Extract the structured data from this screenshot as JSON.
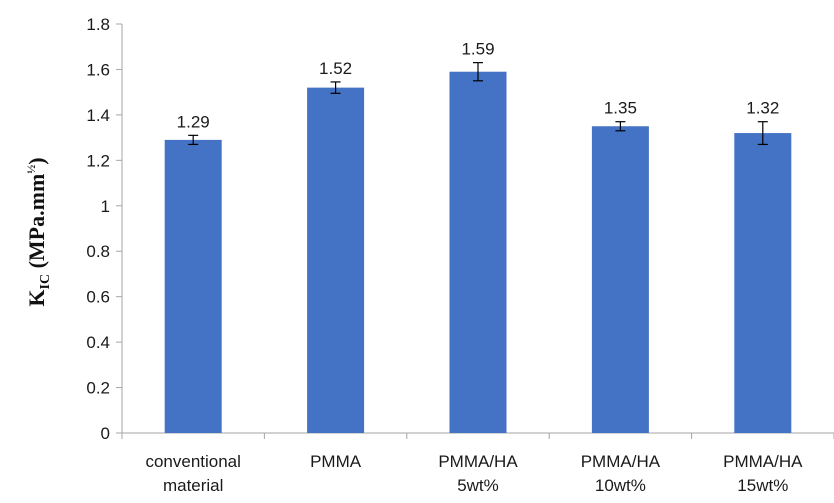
{
  "chart_data": {
    "type": "bar",
    "categories": [
      [
        "conventional",
        "material"
      ],
      [
        "PMMA"
      ],
      [
        "PMMA/HA",
        "5wt%"
      ],
      [
        "PMMA/HA",
        "10wt%"
      ],
      [
        "PMMA/HA",
        "15wt%"
      ]
    ],
    "values": [
      1.29,
      1.52,
      1.59,
      1.35,
      1.32
    ],
    "value_labels": [
      "1.29",
      "1.52",
      "1.59",
      "1.35",
      "1.32"
    ],
    "error": [
      0.02,
      0.025,
      0.04,
      0.02,
      0.05
    ],
    "ylabel": {
      "main": "K",
      "sub": "IC",
      "rest": " (MPa.mm",
      "sup": "½",
      "close": ")"
    },
    "ylim": [
      0,
      1.8
    ],
    "yticks": [
      "0",
      "0.2",
      "0.4",
      "0.6",
      "0.8",
      "1",
      "1.2",
      "1.4",
      "1.6",
      "1.8"
    ],
    "grid": false,
    "legend": "none",
    "colors": {
      "bar": "#4472C4",
      "axis": "#a6a6a6",
      "error": "#000000"
    }
  }
}
